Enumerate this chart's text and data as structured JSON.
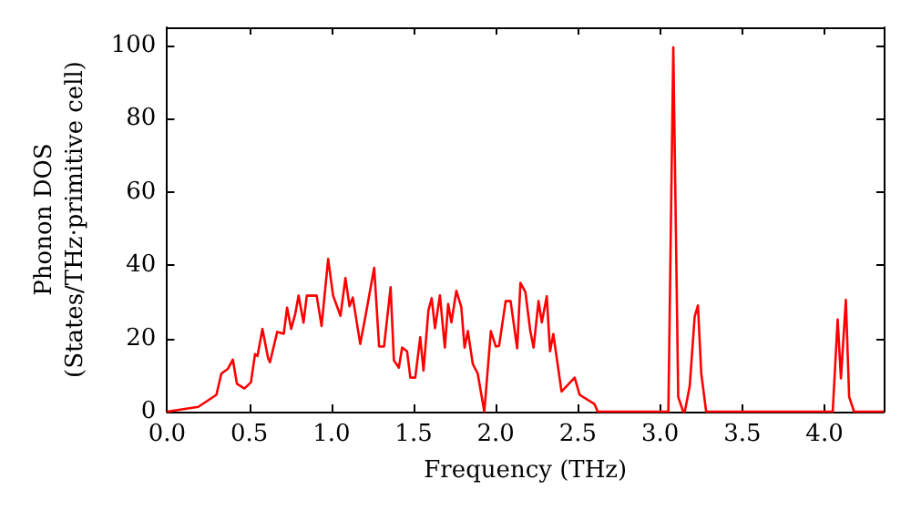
{
  "chart_data": {
    "type": "line",
    "xlabel": "Frequency (THz)",
    "ylabel": "Phonon DOS\n(States/THz·primitive cell)",
    "x": [
      0.0,
      0.19,
      0.3,
      0.33,
      0.37,
      0.4,
      0.425,
      0.47,
      0.51,
      0.535,
      0.55,
      0.58,
      0.615,
      0.626,
      0.67,
      0.71,
      0.73,
      0.755,
      0.78,
      0.8,
      0.83,
      0.85,
      0.91,
      0.94,
      0.98,
      1.01,
      1.055,
      1.085,
      1.11,
      1.13,
      1.175,
      1.21,
      1.26,
      1.29,
      1.32,
      1.36,
      1.38,
      1.41,
      1.43,
      1.46,
      1.48,
      1.51,
      1.54,
      1.56,
      1.59,
      1.61,
      1.63,
      1.66,
      1.69,
      1.71,
      1.73,
      1.76,
      1.79,
      1.81,
      1.83,
      1.86,
      1.89,
      1.93,
      1.97,
      2.0,
      2.02,
      2.06,
      2.09,
      2.13,
      2.15,
      2.18,
      2.21,
      2.23,
      2.26,
      2.28,
      2.31,
      2.33,
      2.35,
      2.4,
      2.48,
      2.51,
      2.6,
      2.62,
      3.05,
      3.08,
      3.11,
      3.14,
      3.15,
      3.18,
      3.21,
      3.23,
      3.25,
      3.28,
      4.05,
      4.08,
      4.1,
      4.13,
      4.15,
      4.18,
      4.36
    ],
    "series": [
      {
        "color": "#ff0000",
        "values": [
          0,
          1.3,
          4.6,
          10.4,
          11.7,
          14.2,
          7.6,
          6.3,
          8.0,
          15.7,
          15.2,
          22.6,
          14.5,
          13.5,
          21.8,
          21.3,
          28.4,
          22.6,
          26.8,
          31.7,
          24.3,
          31.7,
          31.7,
          23.4,
          41.7,
          31.7,
          26.2,
          36.5,
          28.8,
          31.2,
          18.5,
          26.8,
          39.3,
          17.8,
          17.8,
          34,
          14,
          12,
          17.5,
          16.5,
          9.3,
          9.3,
          20.3,
          11.2,
          27.7,
          31,
          22.8,
          31.8,
          17.5,
          29.4,
          24.4,
          33,
          28.6,
          17.5,
          22,
          13,
          10.4,
          0,
          22,
          17.8,
          18,
          30.2,
          30.2,
          17.3,
          35.2,
          32.7,
          22,
          17.5,
          30.2,
          24.4,
          31.5,
          16.5,
          21.2,
          5.5,
          9.3,
          4.6,
          2.1,
          0,
          0,
          99.5,
          4,
          0,
          0,
          7,
          26,
          29,
          10.5,
          0,
          0,
          25.2,
          9.1,
          30.5,
          4,
          0,
          0
        ]
      }
    ],
    "xlim": [
      0,
      4.36
    ],
    "xticks": [
      {
        "value": 0,
        "label": "0.0"
      },
      {
        "value": 0.5,
        "label": "0.5"
      },
      {
        "value": 1,
        "label": "1.0"
      },
      {
        "value": 1.5,
        "label": "1.5"
      },
      {
        "value": 2,
        "label": "2.0"
      },
      {
        "value": 2.5,
        "label": "2.5"
      },
      {
        "value": 3,
        "label": "3.0"
      },
      {
        "value": 3.5,
        "label": "3.5"
      },
      {
        "value": 4,
        "label": "4.0"
      }
    ],
    "ylim": [
      0,
      105
    ],
    "yticks": [
      0,
      20,
      40,
      60,
      80,
      100
    ],
    "grid": false,
    "marker": "none",
    "line_style": "solid"
  }
}
